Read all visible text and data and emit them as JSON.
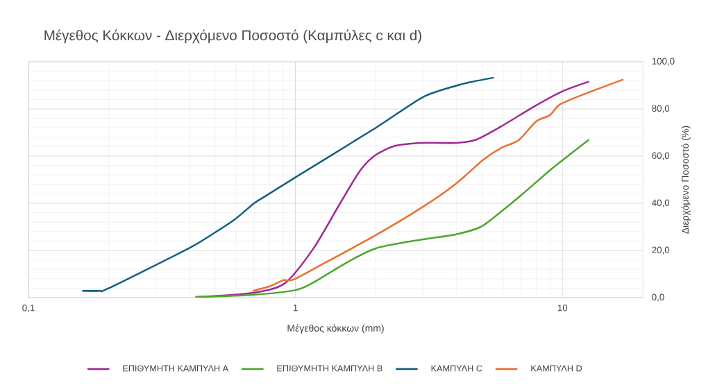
{
  "chart_data": {
    "type": "line",
    "title": "Μέγεθος Κόκκων - Διερχόμενο Ποσοστό (Καμπύλες c και d)",
    "xlabel": "Μέγεθος κόκκων (mm)",
    "ylabel": "Διερχόμενο Ποσοστό (%)",
    "log": "x",
    "xlim": [
      0.1,
      20
    ],
    "xticks": [
      {
        "value": 0.1,
        "label": "0,1"
      },
      1,
      10
    ],
    "ylim": [
      0,
      100
    ],
    "yticks": [
      {
        "value": 0,
        "label": "0,0"
      },
      {
        "value": 20,
        "label": "20,0"
      },
      {
        "value": 40,
        "label": "40,0"
      },
      {
        "value": 60,
        "label": "60,0"
      },
      {
        "value": 80,
        "label": "80,0"
      },
      {
        "value": 100,
        "label": "100,0"
      }
    ],
    "grid": true,
    "legend": "bottom",
    "marker": "none",
    "line_style": "solid",
    "series": [
      {
        "name": "ΕΠΙΘΥΜΗΤΗ ΚΑΜΠΥΛΗ A",
        "color": "#a02b93",
        "x": [
          0.425,
          0.69,
          0.91,
          1.17,
          1.47,
          1.75,
          2.0,
          2.37,
          3.0,
          3.98,
          4.76,
          5.9,
          7.97,
          9.97,
          12.5
        ],
        "values": [
          0.3,
          2,
          6,
          21,
          40,
          54,
          60.5,
          64.4,
          65.6,
          65.6,
          67,
          72.6,
          81.5,
          87.4,
          91.5
        ]
      },
      {
        "name": "ΕΠΙΘΥΜΗΤΗ ΚΑΜΠΥΛΗ B",
        "color": "#4ea72e",
        "x": [
          0.425,
          0.69,
          1.0,
          1.17,
          1.53,
          2.0,
          3.0,
          3.98,
          4.94,
          5.9,
          7.07,
          9.2,
          12.5
        ],
        "values": [
          0.3,
          1.2,
          3.2,
          6.5,
          14.4,
          20.9,
          24.7,
          26.8,
          30,
          36.5,
          43.8,
          55,
          66.8
        ]
      },
      {
        "name": "ΚΑΜΠΥΛΗ C",
        "color": "#156082",
        "x": [
          0.16,
          0.184,
          0.2,
          0.4,
          0.49,
          0.59,
          0.7,
          0.77,
          1.0,
          2.0,
          3.0,
          4.05,
          4.57,
          5.5
        ],
        "values": [
          2.9,
          2.9,
          4,
          21,
          27,
          33,
          40,
          43,
          51,
          72,
          85,
          90,
          91.5,
          93.2
        ]
      },
      {
        "name": "ΚΑΜΠΥΛΗ D",
        "color": "#e97132",
        "x": [
          0.695,
          0.81,
          0.9,
          0.98,
          1.23,
          2.0,
          3.0,
          3.98,
          5.06,
          5.9,
          6.86,
          7.97,
          8.98,
          9.82,
          12.4,
          16.8
        ],
        "values": [
          2.9,
          5,
          7.4,
          7.6,
          13.5,
          26.5,
          38.5,
          48.2,
          58.5,
          63.5,
          66.8,
          74.7,
          77.4,
          82,
          86.8,
          92.4
        ]
      }
    ]
  }
}
